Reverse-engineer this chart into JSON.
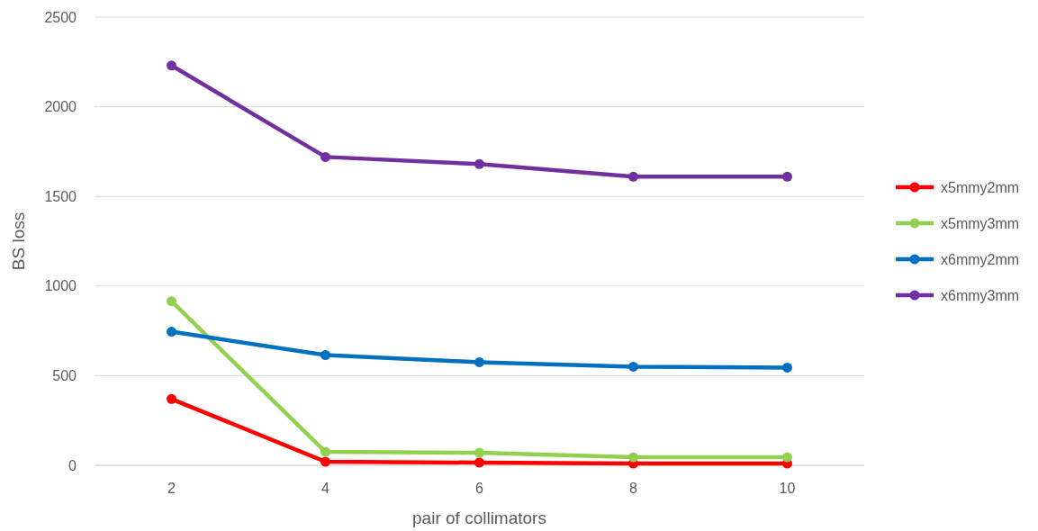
{
  "chart_data": {
    "type": "line",
    "xlabel": "pair of collimators",
    "ylabel": "BS loss",
    "categories": [
      "2",
      "4",
      "6",
      "8",
      "10"
    ],
    "ylim": [
      0,
      2500
    ],
    "yticks": [
      0,
      500,
      1000,
      1500,
      2000,
      2500
    ],
    "grid": "y",
    "legend": "right",
    "marker": "circle",
    "line_style": "solid",
    "series": [
      {
        "name": "x5mmy2mm",
        "color": "#ff0000",
        "values": [
          370,
          20,
          15,
          10,
          10
        ]
      },
      {
        "name": "x5mmy3mm",
        "color": "#92d050",
        "values": [
          915,
          75,
          70,
          45,
          45
        ]
      },
      {
        "name": "x6mmy2mm",
        "color": "#0070c0",
        "values": [
          745,
          615,
          575,
          550,
          545
        ]
      },
      {
        "name": "x6mmy3mm",
        "color": "#7030a0",
        "values": [
          2230,
          1720,
          1680,
          1610,
          1610
        ]
      }
    ]
  }
}
